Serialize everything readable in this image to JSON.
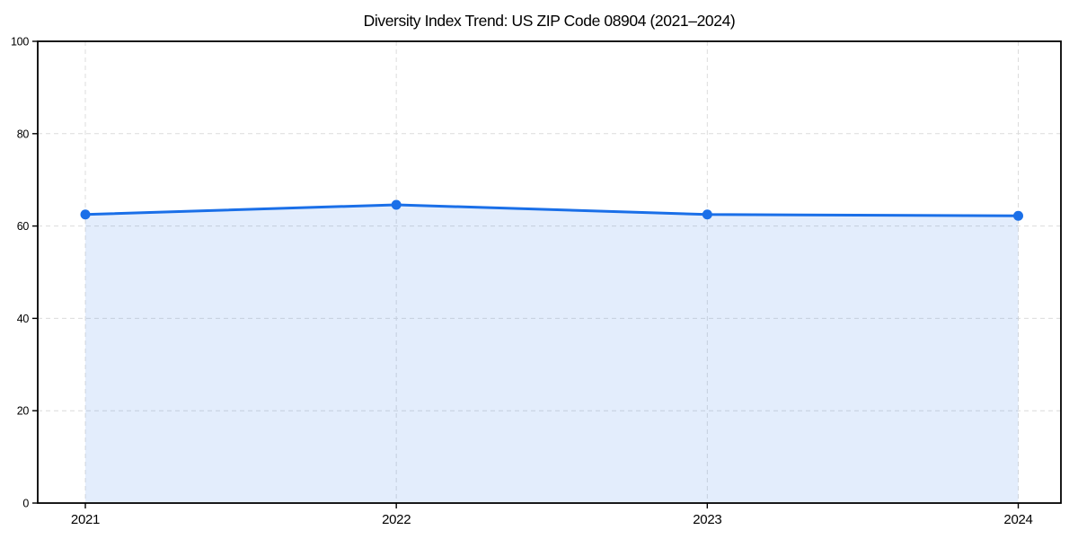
{
  "chart_data": {
    "type": "area",
    "title": "Diversity Index Trend: US ZIP Code 08904 (2021–2024)",
    "categories": [
      "2021",
      "2022",
      "2023",
      "2024"
    ],
    "values": [
      62.5,
      64.6,
      62.5,
      62.2
    ],
    "xlabel": "",
    "ylabel": "",
    "ylim": [
      0,
      100
    ],
    "yticks": [
      0,
      20,
      40,
      60,
      80,
      100
    ],
    "grid": "dashed, both axes, light gray",
    "legend": "none",
    "markers": "filled circles on each data point",
    "colors": {
      "line": "#1a6fe8",
      "marker": "#1a6fe8",
      "fill": "rgba(26,111,232,0.12)",
      "grid": "#dcdcdc",
      "spine": "#000000",
      "tick_label": "#000000",
      "background": "#ffffff"
    }
  }
}
